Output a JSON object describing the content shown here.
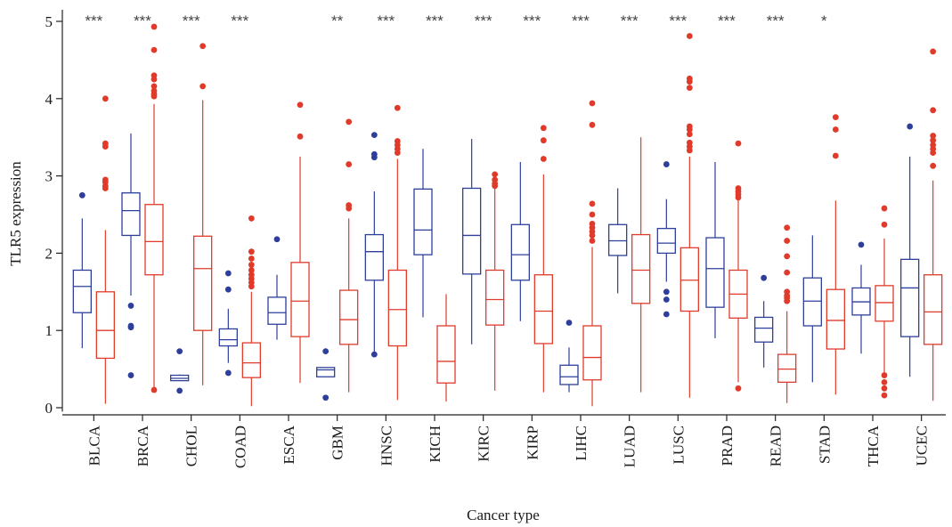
{
  "chart_data": {
    "type": "box",
    "xlabel": "Cancer type",
    "ylabel": "TLR5 expression",
    "ylim": [
      -0.05,
      5.15
    ],
    "yticks": [
      0,
      1,
      2,
      3,
      4,
      5
    ],
    "colors": {
      "normal": "#2d3f9b",
      "tumor": "#e03b2a"
    },
    "categories": [
      "BLCA",
      "BRCA",
      "CHOL",
      "COAD",
      "ESCA",
      "GBM",
      "HNSC",
      "KICH",
      "KIRC",
      "KIRP",
      "LIHC",
      "LUAD",
      "LUSC",
      "PRAD",
      "READ",
      "STAD",
      "THCA",
      "UCEC"
    ],
    "significance": [
      "***",
      "***",
      "***",
      "***",
      "",
      "**",
      "***",
      "***",
      "***",
      "***",
      "***",
      "***",
      "***",
      "***",
      "***",
      "*",
      "",
      ""
    ],
    "series": [
      {
        "key": "normal",
        "boxes": [
          {
            "min": 0.77,
            "q1": 1.23,
            "median": 1.57,
            "q3": 1.78,
            "max": 2.45,
            "outliers": [
              2.75
            ]
          },
          {
            "min": 1.45,
            "q1": 2.23,
            "median": 2.55,
            "q3": 2.78,
            "max": 3.55,
            "outliers": [
              1.32,
              1.06,
              1.04,
              0.42
            ]
          },
          {
            "min": 0.35,
            "q1": 0.35,
            "median": 0.38,
            "q3": 0.42,
            "max": 0.43,
            "outliers": [
              0.73,
              0.22
            ]
          },
          {
            "min": 0.58,
            "q1": 0.8,
            "median": 0.88,
            "q3": 1.02,
            "max": 1.28,
            "outliers": [
              1.74,
              1.53,
              0.45
            ]
          },
          {
            "min": 0.88,
            "q1": 1.08,
            "median": 1.23,
            "q3": 1.43,
            "max": 1.72,
            "outliers": [
              2.18
            ]
          },
          {
            "min": 0.4,
            "q1": 0.4,
            "median": 0.49,
            "q3": 0.52,
            "max": 0.52,
            "outliers": [
              0.73,
              0.13
            ]
          },
          {
            "min": 0.72,
            "q1": 1.65,
            "median": 2.02,
            "q3": 2.24,
            "max": 2.8,
            "outliers": [
              3.53,
              3.28,
              3.24,
              0.69
            ]
          },
          {
            "min": 1.17,
            "q1": 1.98,
            "median": 2.3,
            "q3": 2.83,
            "max": 3.35,
            "outliers": []
          },
          {
            "min": 0.82,
            "q1": 1.73,
            "median": 2.23,
            "q3": 2.84,
            "max": 3.48,
            "outliers": []
          },
          {
            "min": 1.12,
            "q1": 1.65,
            "median": 1.98,
            "q3": 2.37,
            "max": 3.18,
            "outliers": []
          },
          {
            "min": 0.2,
            "q1": 0.3,
            "median": 0.4,
            "q3": 0.55,
            "max": 0.78,
            "outliers": [
              1.1
            ]
          },
          {
            "min": 1.48,
            "q1": 1.97,
            "median": 2.16,
            "q3": 2.37,
            "max": 2.84,
            "outliers": []
          },
          {
            "min": 1.63,
            "q1": 2.0,
            "median": 2.13,
            "q3": 2.32,
            "max": 2.7,
            "outliers": [
              3.15,
              1.5,
              1.4,
              1.21
            ]
          },
          {
            "min": 0.9,
            "q1": 1.3,
            "median": 1.8,
            "q3": 2.2,
            "max": 3.18,
            "outliers": []
          },
          {
            "min": 0.52,
            "q1": 0.85,
            "median": 1.03,
            "q3": 1.17,
            "max": 1.38,
            "outliers": [
              1.68
            ]
          },
          {
            "min": 0.33,
            "q1": 1.06,
            "median": 1.38,
            "q3": 1.68,
            "max": 2.23,
            "outliers": []
          },
          {
            "min": 0.7,
            "q1": 1.2,
            "median": 1.37,
            "q3": 1.55,
            "max": 1.85,
            "outliers": [
              2.11
            ]
          },
          {
            "min": 0.4,
            "q1": 0.92,
            "median": 1.55,
            "q3": 1.92,
            "max": 3.25,
            "outliers": [
              3.64
            ]
          }
        ]
      },
      {
        "key": "tumor",
        "boxes": [
          {
            "min": 0.05,
            "q1": 0.64,
            "median": 1.0,
            "q3": 1.5,
            "max": 2.3,
            "outliers": [
              4.0,
              3.42,
              3.38,
              2.95,
              2.92,
              2.87,
              2.84
            ]
          },
          {
            "min": 0.23,
            "q1": 1.72,
            "median": 2.15,
            "q3": 2.63,
            "max": 3.93,
            "outliers": [
              4.93,
              4.63,
              4.3,
              4.25,
              4.16,
              4.1,
              4.06,
              4.03,
              0.23
            ]
          },
          {
            "min": 0.29,
            "q1": 1.0,
            "median": 1.8,
            "q3": 2.22,
            "max": 3.98,
            "outliers": [
              4.68,
              4.16
            ]
          },
          {
            "min": 0.02,
            "q1": 0.39,
            "median": 0.58,
            "q3": 0.84,
            "max": 1.5,
            "outliers": [
              2.45,
              2.02,
              1.93,
              1.85,
              1.78,
              1.72,
              1.67,
              1.62,
              1.57
            ]
          },
          {
            "min": 0.32,
            "q1": 0.92,
            "median": 1.38,
            "q3": 1.88,
            "max": 3.25,
            "outliers": [
              3.92,
              3.51
            ]
          },
          {
            "min": 0.2,
            "q1": 0.82,
            "median": 1.14,
            "q3": 1.52,
            "max": 2.45,
            "outliers": [
              3.7,
              3.15,
              2.62,
              2.58
            ]
          },
          {
            "min": 0.1,
            "q1": 0.8,
            "median": 1.27,
            "q3": 1.78,
            "max": 3.22,
            "outliers": [
              3.88,
              3.45,
              3.4,
              3.35,
              3.3
            ]
          },
          {
            "min": 0.08,
            "q1": 0.32,
            "median": 0.6,
            "q3": 1.06,
            "max": 1.47,
            "outliers": []
          },
          {
            "min": 0.22,
            "q1": 1.07,
            "median": 1.4,
            "q3": 1.78,
            "max": 2.85,
            "outliers": [
              3.02,
              2.95,
              2.9,
              2.87
            ]
          },
          {
            "min": 0.2,
            "q1": 0.83,
            "median": 1.25,
            "q3": 1.72,
            "max": 3.02,
            "outliers": [
              3.62,
              3.46,
              3.22
            ]
          },
          {
            "min": 0.02,
            "q1": 0.36,
            "median": 0.65,
            "q3": 1.06,
            "max": 2.08,
            "outliers": [
              3.94,
              3.66,
              2.64,
              2.5,
              2.38,
              2.33,
              2.28,
              2.23,
              2.16
            ]
          },
          {
            "min": 0.2,
            "q1": 1.35,
            "median": 1.78,
            "q3": 2.24,
            "max": 3.5,
            "outliers": []
          },
          {
            "min": 0.13,
            "q1": 1.25,
            "median": 1.65,
            "q3": 2.07,
            "max": 3.25,
            "outliers": [
              4.81,
              4.26,
              4.22,
              4.14,
              3.64,
              3.6,
              3.54,
              3.43,
              3.38,
              3.33
            ]
          },
          {
            "min": 0.33,
            "q1": 1.16,
            "median": 1.47,
            "q3": 1.78,
            "max": 2.7,
            "outliers": [
              3.42,
              2.84,
              2.8,
              2.76,
              2.72,
              0.25
            ]
          },
          {
            "min": 0.06,
            "q1": 0.33,
            "median": 0.5,
            "q3": 0.69,
            "max": 1.25,
            "outliers": [
              2.33,
              2.16,
              1.96,
              1.75,
              1.5,
              1.45,
              1.42,
              1.38
            ]
          },
          {
            "min": 0.17,
            "q1": 0.76,
            "median": 1.13,
            "q3": 1.53,
            "max": 2.68,
            "outliers": [
              3.76,
              3.6,
              3.26
            ]
          },
          {
            "min": 0.42,
            "q1": 1.12,
            "median": 1.36,
            "q3": 1.58,
            "max": 2.19,
            "outliers": [
              2.58,
              2.37,
              0.42,
              0.33,
              0.25,
              0.16
            ]
          },
          {
            "min": 0.09,
            "q1": 0.82,
            "median": 1.24,
            "q3": 1.72,
            "max": 2.94,
            "outliers": [
              4.61,
              3.85,
              3.52,
              3.46,
              3.4,
              3.35,
              3.3,
              3.13
            ]
          }
        ]
      }
    ]
  }
}
